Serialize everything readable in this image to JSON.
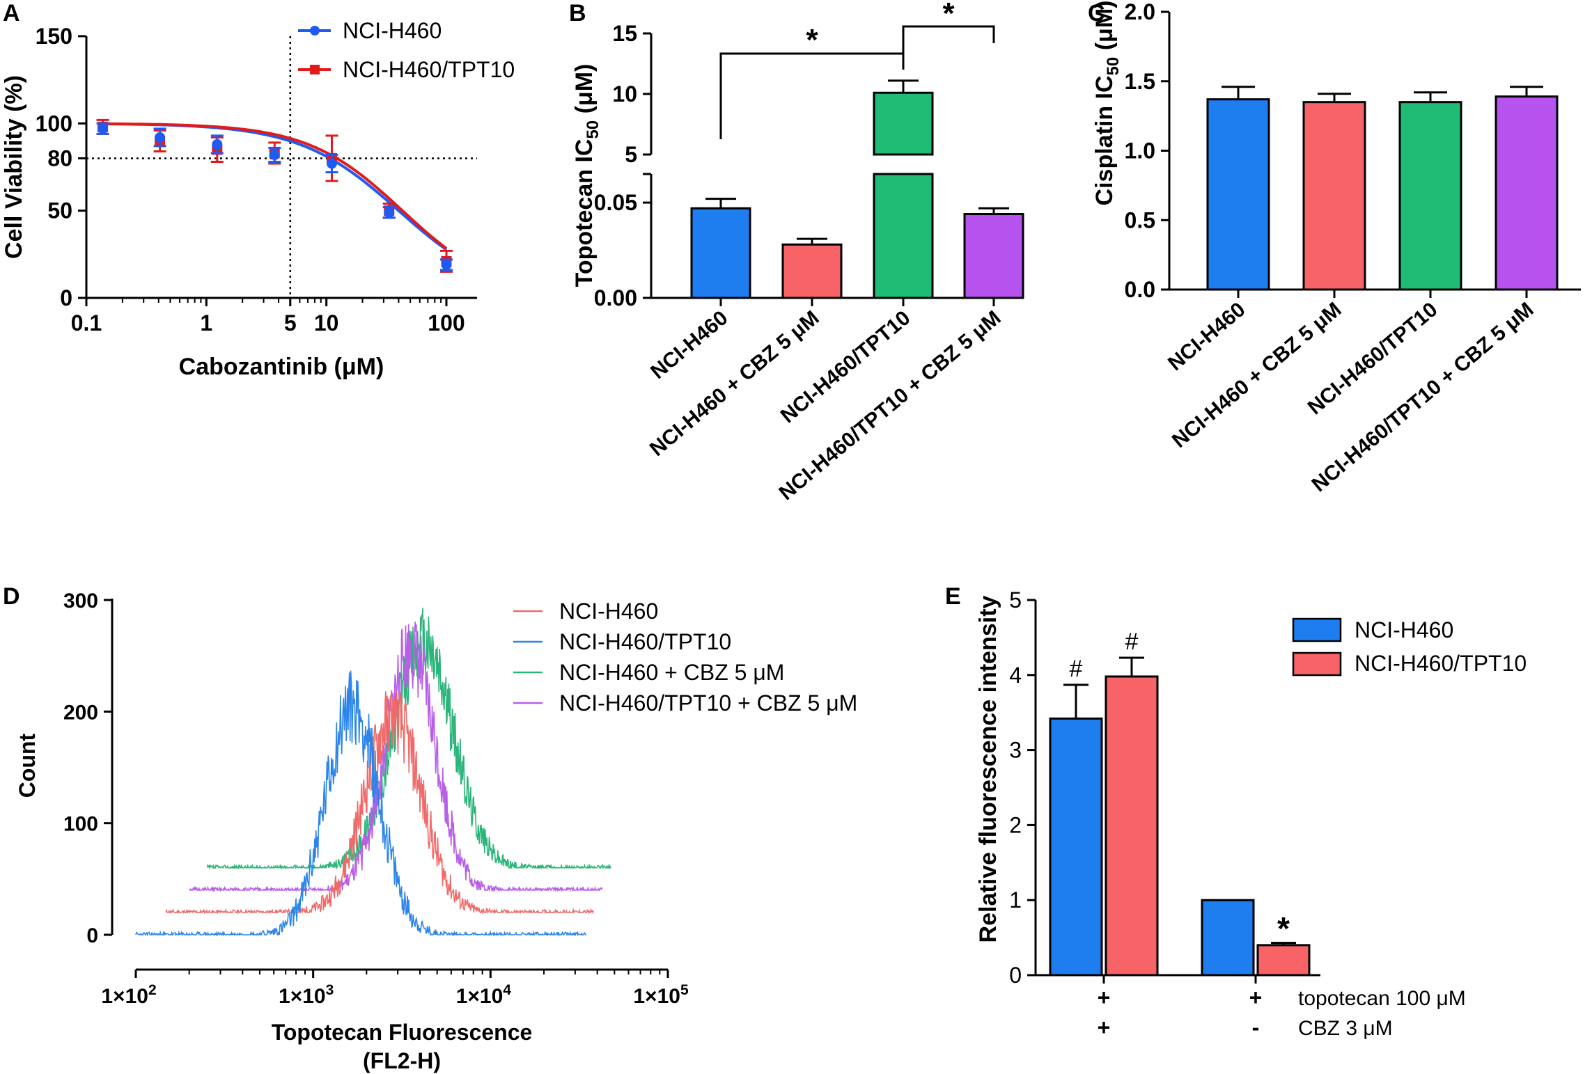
{
  "colors": {
    "blue": "#1f5bf2",
    "red_line": "#e31a1c",
    "bar_blue": "#1e7ef0",
    "bar_red": "#f76366",
    "bar_green": "#1ebc74",
    "bar_purple": "#b653ee",
    "hist_red": "#f06a6a",
    "hist_blue": "#2c86e8",
    "hist_green": "#2bb57a",
    "hist_purple": "#b95ee8",
    "axis": "#000000"
  },
  "chart_data": [
    {
      "panel": "A",
      "type": "line",
      "xscale": "log",
      "xlabel": "Cabozantinib (μM)",
      "ylabel": "Cell Viability (%)",
      "xticks": [
        "0.1",
        "1",
        "5",
        "10",
        "100"
      ],
      "xtick_values": [
        0.1,
        1,
        5,
        10,
        100
      ],
      "yticks": [
        "0",
        "50",
        "80",
        "100",
        "150"
      ],
      "ytick_values": [
        0,
        50,
        80,
        100,
        150
      ],
      "xlim": [
        0.1,
        180
      ],
      "ylim": [
        0,
        150
      ],
      "reference_lines": {
        "x": 5,
        "y": 80
      },
      "series": [
        {
          "name": "NCI-H460",
          "marker": "circle",
          "x": [
            0.137,
            0.41,
            1.23,
            3.7,
            11.1,
            33.3,
            100
          ],
          "y": [
            97,
            92,
            88,
            82,
            77,
            49,
            19
          ],
          "err": [
            3,
            5,
            5,
            4,
            5,
            3,
            3
          ],
          "curve_top": 100,
          "curve_bottom": 0,
          "ic50": 40,
          "hill": 1.05
        },
        {
          "name": "NCI-H460/TPT10",
          "marker": "square",
          "x": [
            0.137,
            0.41,
            1.23,
            3.7,
            11.1,
            33.3,
            100
          ],
          "y": [
            98,
            90,
            85,
            83,
            80,
            50,
            21
          ],
          "err": [
            4,
            6,
            7,
            6,
            13,
            4,
            6
          ],
          "curve_top": 100,
          "curve_bottom": 0,
          "ic50": 43,
          "hill": 1.1
        }
      ]
    },
    {
      "panel": "B",
      "type": "bar",
      "ylabel_main": "Topotecan IC",
      "ylabel_sub": "50",
      "ylabel_unit": " (μM)",
      "categories": [
        "NCI-H460",
        "NCI-H460 + CBZ 5 μM",
        "NCI-H460/TPT10",
        "NCI-H460/TPT10 + CBZ 5 μM"
      ],
      "values": [
        0.047,
        0.028,
        10.1,
        0.044
      ],
      "errors": [
        0.005,
        0.003,
        1.0,
        0.003
      ],
      "axis_break": true,
      "ylim_lower": [
        0,
        0.065
      ],
      "ylim_upper": [
        5,
        15
      ],
      "yticks_lower": [
        "0.00",
        "0.05"
      ],
      "yticks_upper": [
        "5",
        "10",
        "15"
      ],
      "significance": [
        {
          "from": 0,
          "to": 2,
          "label": "*"
        },
        {
          "from": 2,
          "to": 3,
          "label": "*"
        }
      ]
    },
    {
      "panel": "C",
      "type": "bar",
      "ylabel_main": "Cisplatin IC",
      "ylabel_sub": "50",
      "ylabel_unit": " (μM)",
      "categories": [
        "NCI-H460",
        "NCI-H460 + CBZ 5 μM",
        "NCI-H460/TPT10",
        "NCI-H460/TPT10 + CBZ 5 μM"
      ],
      "values": [
        1.37,
        1.35,
        1.35,
        1.39
      ],
      "errors": [
        0.09,
        0.06,
        0.07,
        0.07
      ],
      "ylim": [
        0,
        2.0
      ],
      "yticks": [
        "0.0",
        "0.5",
        "1.0",
        "1.5",
        "2.0"
      ],
      "ytick_values": [
        0,
        0.5,
        1.0,
        1.5,
        2.0
      ]
    },
    {
      "panel": "D",
      "type": "histogram",
      "xscale": "log",
      "xlabel_line1": "Topotecan Fluorescence",
      "xlabel_line2": "(FL2-H)",
      "ylabel": "Count",
      "xticks": [
        {
          "base": "1×10",
          "exp": "2"
        },
        {
          "base": "1×10",
          "exp": "3"
        },
        {
          "base": "1×10",
          "exp": "4"
        },
        {
          "base": "1×10",
          "exp": "5"
        }
      ],
      "yticks": [
        "0",
        "100",
        "200",
        "300"
      ],
      "ytick_values": [
        0,
        100,
        200,
        300
      ],
      "ylim": [
        0,
        300
      ],
      "series": [
        {
          "name": "NCI-H460",
          "offset": 20,
          "peak_log": 3.45,
          "width": 0.16,
          "height": 175,
          "x_start_log": 2.17,
          "x_end_log": 4.58,
          "seed": 11
        },
        {
          "name": "NCI-H460/TPT10",
          "offset": 0,
          "peak_log": 3.22,
          "width": 0.15,
          "height": 205,
          "x_start_log": 2.0,
          "x_end_log": 4.54,
          "seed": 23
        },
        {
          "name": "NCI-H460 + CBZ 5 μM",
          "offset": 60,
          "peak_log": 3.62,
          "width": 0.17,
          "height": 200,
          "x_start_log": 2.4,
          "x_end_log": 4.68,
          "seed": 37
        },
        {
          "name": "NCI-H460/TPT10 + CBZ 5 μM",
          "offset": 40,
          "peak_log": 3.55,
          "width": 0.14,
          "height": 215,
          "x_start_log": 2.3,
          "x_end_log": 4.63,
          "seed": 51
        }
      ]
    },
    {
      "panel": "E",
      "type": "bar",
      "ylabel": "Relative fluorescence intensity",
      "ylim": [
        0,
        5
      ],
      "yticks": [
        "0",
        "1",
        "2",
        "3",
        "4",
        "5"
      ],
      "ytick_values": [
        0,
        1,
        2,
        3,
        4,
        5
      ],
      "legend": [
        "NCI-H460",
        "NCI-H460/TPT10"
      ],
      "groups": [
        {
          "values": [
            3.42,
            3.98
          ],
          "errors": [
            0.45,
            0.25
          ],
          "marks": [
            "#",
            "#"
          ],
          "topotecan": "+",
          "cbz": "+"
        },
        {
          "values": [
            1.0,
            0.4
          ],
          "errors": [
            0,
            0.03
          ],
          "marks": [
            "",
            "*"
          ],
          "topotecan": "+",
          "cbz": "-"
        }
      ],
      "row_labels": [
        "topotecan 100 μM",
        "CBZ 3 μM"
      ]
    }
  ]
}
